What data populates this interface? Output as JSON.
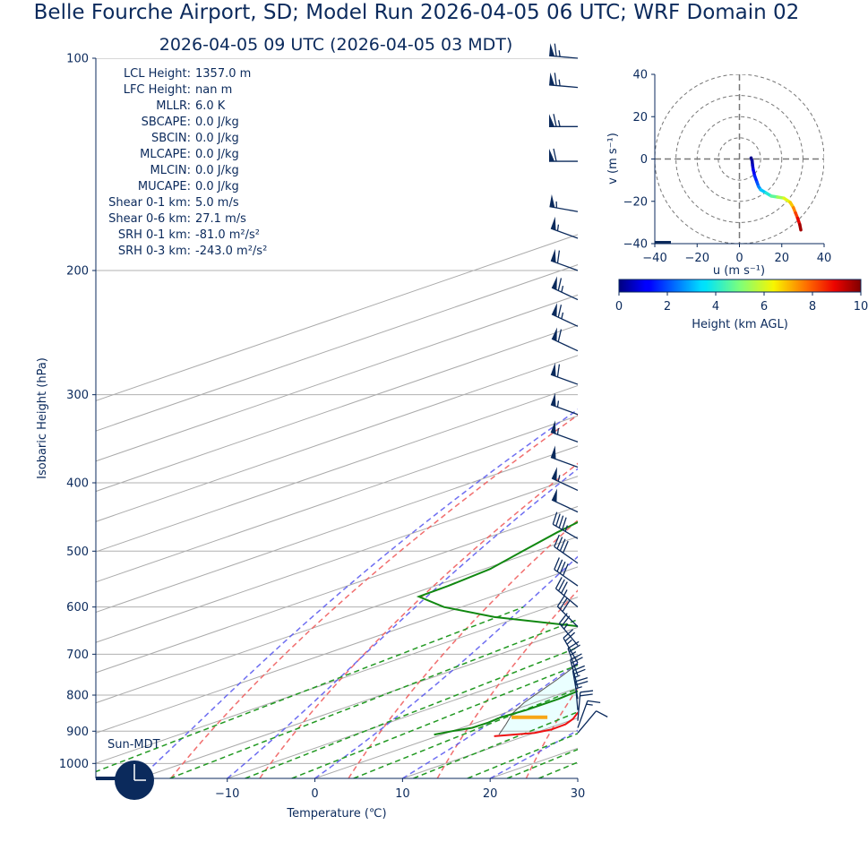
{
  "title": "Belle Fourche Airport, SD; Model Run 2026-04-05 06 UTC; WRF Domain 02",
  "subtitle": "2026-04-05 09 UTC  (2026-04-05 03 MDT)",
  "colors": {
    "text": "#0b2a5c",
    "temperature": "#ee1111",
    "dewpoint": "#118811",
    "parcel": "#555555",
    "dry_adiabat": "#ee5555",
    "moist_adiabat": "#5555ee",
    "mixing_ratio": "#229922",
    "isotherm": "#aaaaaa",
    "cape_fill": "#eaffff",
    "lcl_marker": "#f7a617",
    "barb": "#0b2a5c"
  },
  "stats": [
    {
      "label": "LCL Height:",
      "value": "1357.0 m"
    },
    {
      "label": "LFC Height:",
      "value": "nan m"
    },
    {
      "label": "MLLR:",
      "value": "6.0 K"
    },
    {
      "label": "SBCAPE:",
      "value": "0.0 J/kg"
    },
    {
      "label": "SBCIN:",
      "value": "0.0 J/kg"
    },
    {
      "label": "MLCAPE:",
      "value": "0.0 J/kg"
    },
    {
      "label": "MLCIN:",
      "value": "0.0 J/kg"
    },
    {
      "label": "MUCAPE:",
      "value": "0.0 J/kg"
    },
    {
      "label": "Shear 0-1 km:",
      "value": "5.0 m/s"
    },
    {
      "label": "Shear 0-6 km:",
      "value": "27.1 m/s"
    },
    {
      "label": "SRH 0-1 km:",
      "value": "-81.0 m²/s²"
    },
    {
      "label": "SRH 0-3 km:",
      "value": "-243.0 m²/s²"
    }
  ],
  "sun_label": "Sun-MDT",
  "chart_data": [
    {
      "type": "line",
      "chart": "skew-t",
      "xlabel": "Temperature (℃)",
      "ylabel": "Isobaric Height (hPa)",
      "xlim": [
        -25,
        30
      ],
      "ylim": [
        1050,
        100
      ],
      "y_scale": "log",
      "xticks": [
        -10,
        0,
        10,
        20,
        30
      ],
      "xtick_labels": [
        "−10",
        "0",
        "10",
        "20",
        "30"
      ],
      "yticks": [
        1000,
        900,
        800,
        700,
        600,
        500,
        400,
        300,
        200,
        100
      ],
      "ytick_labels": [
        "1000",
        "900",
        "800",
        "700",
        "600",
        "500",
        "400",
        "300",
        "200",
        "100"
      ],
      "temperature": {
        "p": [
          915,
          905,
          895,
          880,
          865,
          850,
          820,
          790,
          760,
          730,
          700,
          670,
          640,
          620,
          600,
          580,
          560,
          530,
          500,
          470,
          440,
          400,
          370,
          340,
          310,
          290,
          270,
          250,
          230,
          215,
          200,
          185,
          170,
          155,
          140,
          125,
          110,
          100
        ],
        "t": [
          6.5,
          10.0,
          10.8,
          10.7,
          9.8,
          8.5,
          6.1,
          3.7,
          1.0,
          -1.6,
          -4.6,
          -7.7,
          -11.2,
          -14.3,
          -17.3,
          -20.0,
          -22.6,
          -26.0,
          -29.5,
          -33.1,
          -37.2,
          -42.4,
          -46.5,
          -50.6,
          -54.4,
          -56.8,
          -58.6,
          -58.8,
          -57.8,
          -55.6,
          -50.5,
          -41.4,
          -33.7,
          -27.0,
          -20.2,
          -14.8,
          -10.2,
          -7.6
        ]
      },
      "dewpoint": {
        "p": [
          910,
          900,
          890,
          875,
          860,
          840,
          810,
          780,
          750,
          720,
          700,
          680,
          665,
          650,
          640,
          620,
          600,
          580,
          560,
          530,
          500,
          470,
          440,
          400,
          370,
          340,
          300,
          270,
          250,
          230,
          200,
          180,
          160,
          145,
          130,
          110,
          100
        ],
        "t": [
          -0.9,
          0.0,
          1.2,
          1.3,
          1.0,
          1.5,
          1.5,
          0.9,
          -1.2,
          -3.0,
          -5.5,
          -8.2,
          -9.5,
          -11.2,
          -19.6,
          -32.9,
          -42.0,
          -48.3,
          -48.5,
          -49.3,
          -51.5,
          -53.8,
          -55.8,
          -58.2,
          -61.4,
          -66.0,
          -71.0,
          -74.2,
          -76.5,
          -78.0,
          -79.2,
          -78.3,
          -75.0,
          -71.4,
          -65.8,
          -56.5,
          -50.5
        ]
      },
      "parcel": {
        "p": [
          910,
          880,
          850,
          820,
          790,
          760,
          730,
          700,
          670,
          640,
          610,
          580,
          550,
          520,
          490,
          460,
          430,
          400,
          370,
          340,
          310,
          280,
          250,
          220,
          200
        ],
        "t": [
          6.5,
          3.9,
          1.1,
          -1.2,
          -3.1,
          -5.1,
          -7.3,
          -9.6,
          -12.2,
          -15.0,
          -18.1,
          -21.4,
          -25.0,
          -29.0,
          -33.2,
          -37.7,
          -42.6,
          -47.9,
          -53.6,
          -59.8,
          -66.6,
          -74.0,
          -82.1,
          -91.0,
          -97.5
        ]
      },
      "lcl": {
        "p": 860,
        "t_min": 2.2,
        "t_max": 6.3
      },
      "wind_barbs": [
        {
          "p": 100,
          "speed_kt": 65,
          "dir_deg": 275
        },
        {
          "p": 110,
          "speed_kt": 65,
          "dir_deg": 275
        },
        {
          "p": 125,
          "speed_kt": 65,
          "dir_deg": 270
        },
        {
          "p": 140,
          "speed_kt": 60,
          "dir_deg": 270
        },
        {
          "p": 165,
          "speed_kt": 55,
          "dir_deg": 280
        },
        {
          "p": 180,
          "speed_kt": 55,
          "dir_deg": 290
        },
        {
          "p": 200,
          "speed_kt": 60,
          "dir_deg": 290
        },
        {
          "p": 220,
          "speed_kt": 65,
          "dir_deg": 295
        },
        {
          "p": 240,
          "speed_kt": 65,
          "dir_deg": 295
        },
        {
          "p": 260,
          "speed_kt": 60,
          "dir_deg": 295
        },
        {
          "p": 290,
          "speed_kt": 60,
          "dir_deg": 290
        },
        {
          "p": 320,
          "speed_kt": 55,
          "dir_deg": 290
        },
        {
          "p": 350,
          "speed_kt": 55,
          "dir_deg": 290
        },
        {
          "p": 380,
          "speed_kt": 50,
          "dir_deg": 290
        },
        {
          "p": 410,
          "speed_kt": 55,
          "dir_deg": 295
        },
        {
          "p": 440,
          "speed_kt": 50,
          "dir_deg": 295
        },
        {
          "p": 480,
          "speed_kt": 45,
          "dir_deg": 300
        },
        {
          "p": 520,
          "speed_kt": 40,
          "dir_deg": 305
        },
        {
          "p": 560,
          "speed_kt": 40,
          "dir_deg": 305
        },
        {
          "p": 600,
          "speed_kt": 35,
          "dir_deg": 310
        },
        {
          "p": 640,
          "speed_kt": 30,
          "dir_deg": 315
        },
        {
          "p": 680,
          "speed_kt": 25,
          "dir_deg": 320
        },
        {
          "p": 720,
          "speed_kt": 25,
          "dir_deg": 330
        },
        {
          "p": 750,
          "speed_kt": 25,
          "dir_deg": 340
        },
        {
          "p": 780,
          "speed_kt": 25,
          "dir_deg": 345
        },
        {
          "p": 810,
          "speed_kt": 25,
          "dir_deg": 350
        },
        {
          "p": 840,
          "speed_kt": 25,
          "dir_deg": 355
        },
        {
          "p": 870,
          "speed_kt": 20,
          "dir_deg": 5
        },
        {
          "p": 890,
          "speed_kt": 15,
          "dir_deg": 20
        },
        {
          "p": 905,
          "speed_kt": 10,
          "dir_deg": 40
        }
      ]
    },
    {
      "type": "line",
      "chart": "hodograph",
      "xlabel": "u (m s⁻¹)",
      "ylabel": "v (m s⁻¹)",
      "xlim": [
        -40,
        40
      ],
      "ylim": [
        -40,
        40
      ],
      "xticks": [
        -40,
        -20,
        0,
        20,
        40
      ],
      "xtick_labels": [
        "−40",
        "−20",
        "0",
        "20",
        "40"
      ],
      "yticks": [
        -40,
        -20,
        0,
        20,
        40
      ],
      "ytick_labels": [
        "−40",
        "−20",
        "0",
        "20",
        "40"
      ],
      "rings": [
        10,
        20,
        30,
        40
      ],
      "u": [
        5.5,
        6.0,
        6.2,
        6.5,
        7.2,
        8.3,
        9.0,
        10.0,
        12.5,
        15.0,
        18.0,
        21.0,
        24.0,
        25.5,
        26.5,
        27.5,
        28.5,
        29.0
      ],
      "v": [
        0.5,
        -1.0,
        -3.0,
        -5.0,
        -8.0,
        -11.0,
        -13.0,
        -14.5,
        -16.0,
        -17.5,
        -18.0,
        -18.5,
        -20.5,
        -23.0,
        -25.5,
        -28.0,
        -31.0,
        -33.5
      ],
      "height_km": [
        0.0,
        0.2,
        0.5,
        0.8,
        1.2,
        1.7,
        2.2,
        2.8,
        3.5,
        4.2,
        5.0,
        5.8,
        6.5,
        7.2,
        7.9,
        8.6,
        9.3,
        10.0
      ]
    }
  ],
  "colorbar": {
    "label": "Height (km AGL)",
    "ticks": [
      0,
      2,
      4,
      6,
      8,
      10
    ],
    "tick_labels": [
      "0",
      "2",
      "4",
      "6",
      "8",
      "10"
    ],
    "range": [
      0,
      10
    ]
  }
}
